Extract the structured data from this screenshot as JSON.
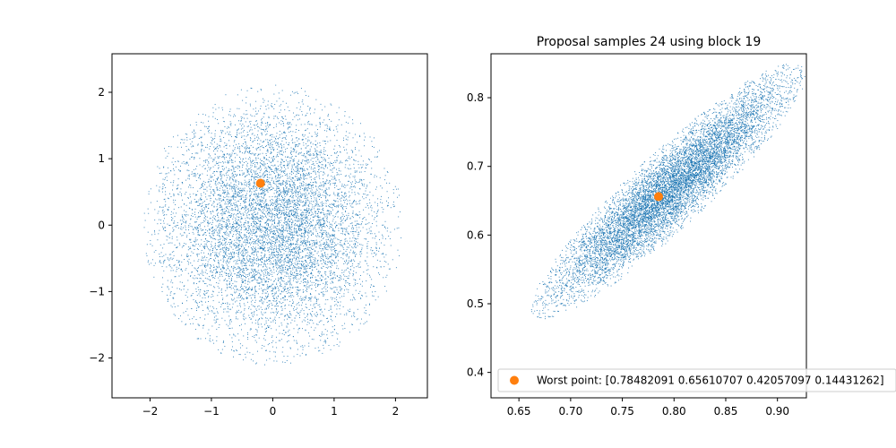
{
  "chart_data": [
    {
      "type": "scatter",
      "title": "",
      "xlabel": "",
      "ylabel": "",
      "xlim": [
        -2.62,
        2.52
      ],
      "ylim": [
        -2.6,
        2.58
      ],
      "xticks": [
        -2,
        -1,
        0,
        1,
        2
      ],
      "yticks": [
        -2,
        -1,
        0,
        1,
        2
      ],
      "xtick_labels": [
        "−2",
        "−1",
        "0",
        "1",
        "2"
      ],
      "ytick_labels": [
        "−2",
        "−1",
        "0",
        "1",
        "2"
      ],
      "grid": false,
      "samples": {
        "distribution": "gaussian",
        "count": 8000,
        "mean": [
          0.0,
          0.0
        ],
        "std": [
          0.9,
          0.9
        ],
        "correlation": 0.0,
        "radius": 2.35,
        "color": "#1f77b4"
      },
      "highlight_point": {
        "x": -0.2,
        "y": 0.63,
        "color": "#ff7f0e"
      }
    },
    {
      "type": "scatter",
      "title": "Proposal samples 24 using block 19",
      "xlabel": "",
      "ylabel": "",
      "xlim": [
        0.623,
        0.928
      ],
      "ylim": [
        0.363,
        0.864
      ],
      "xticks": [
        0.65,
        0.7,
        0.75,
        0.8,
        0.85,
        0.9
      ],
      "yticks": [
        0.4,
        0.5,
        0.6,
        0.7,
        0.8
      ],
      "xtick_labels": [
        "0.65",
        "0.70",
        "0.75",
        "0.80",
        "0.85",
        "0.90"
      ],
      "ytick_labels": [
        "0.4",
        "0.5",
        "0.6",
        "0.7",
        "0.8"
      ],
      "grid": false,
      "samples": {
        "distribution": "gaussian",
        "count": 9000,
        "mean": [
          0.795,
          0.665
        ],
        "std": [
          0.057,
          0.08
        ],
        "correlation": 0.92,
        "radius": 2.35,
        "color": "#1f77b4"
      },
      "highlight_point": {
        "x": 0.785,
        "y": 0.656,
        "color": "#ff7f0e"
      },
      "legend": {
        "placement": "lower-right",
        "label": "Worst point: [0.78482091 0.65610707 0.42057097 0.14431262]"
      }
    }
  ]
}
